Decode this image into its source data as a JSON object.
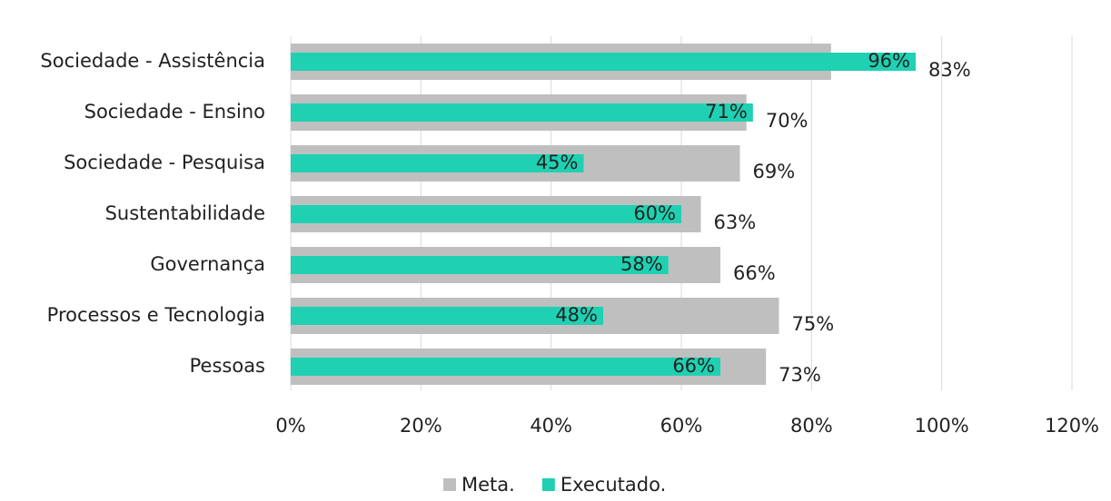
{
  "chart_data": {
    "type": "barh",
    "categories": [
      "Sociedade - Assistência",
      "Sociedade - Ensino",
      "Sociedade - Pesquisa",
      "Sustentabilidade",
      "Governança",
      "Processos e Tecnologia",
      "Pessoas"
    ],
    "series": [
      {
        "name": "Meta.",
        "color": "#bfbfbf",
        "values": [
          83,
          70,
          69,
          63,
          66,
          75,
          73
        ],
        "value_labels": [
          "83%",
          "70%",
          "69%",
          "63%",
          "66%",
          "75%",
          "73%"
        ]
      },
      {
        "name": "Executado.",
        "color": "#1fd1b2",
        "values": [
          96,
          71,
          45,
          60,
          58,
          48,
          66
        ],
        "value_labels": [
          "96%",
          "71%",
          "45%",
          "60%",
          "58%",
          "48%",
          "66%"
        ]
      }
    ],
    "xlim": [
      0,
      120
    ],
    "xticks": [
      {
        "value": 0,
        "label": "0%"
      },
      {
        "value": 20,
        "label": "20%"
      },
      {
        "value": 40,
        "label": "40%"
      },
      {
        "value": 60,
        "label": "60%"
      },
      {
        "value": 80,
        "label": "80%"
      },
      {
        "value": 100,
        "label": "100%"
      },
      {
        "value": 120,
        "label": "120%"
      }
    ],
    "grid": true,
    "legend": "bottom"
  }
}
